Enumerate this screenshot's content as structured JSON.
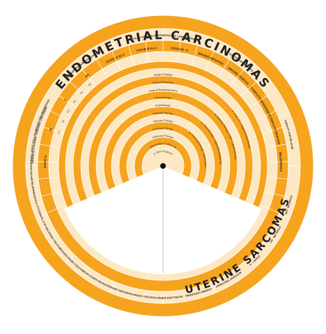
{
  "titles": {
    "top": "ENDOMETRIAL CARCINOMAS",
    "right": "UTERINE SARCOMAS"
  },
  "colors": {
    "orange": "#f6a31e",
    "cream": "#fde8c4",
    "line": "#ffffff",
    "dark": "#231f20"
  },
  "top_sections": [
    "SURGICALLY STAGED - ADJUVANT TREATMENT",
    "INCOMPLETE SURGICAL STAGING",
    "FERTILITY-SPARING (HYSTEROSCOPIC / ENDOMETRIAL)",
    "SURVEILLANCE - ENDO - R",
    "THERAPY FOR RELAPSE"
  ],
  "stage_headers": [
    "STAGE IA",
    "IB",
    "II",
    "IIIA",
    "STAGE IA G1-3",
    "STAGE IB G1-3",
    "STAGE IB - II",
    "IMAGING NEGATIVE",
    "IMAGING POSITIVE",
    "COMPLETE RESPONSE",
    "INCOMPLETE RESPONSE",
    "RECURRENCE"
  ],
  "treatment_arcs": [
    "Surgical Staging",
    "Surgical Resection",
    "Surgical Restaging Pelvic",
    "Chemotherapy",
    "Radiotherapy",
    "Systemic Therapy",
    "Adjuvant Therapy",
    "Hormonal Therapy",
    "Additional Therapy",
    "Observation / Follow Up",
    "Palliative / Best Supportive Care"
  ],
  "outer_sections": [
    "STAGE IVA - IVB",
    "STAGE IIIB - IIIC",
    "STAGE I - II",
    "ADJUVANT TREATMENT",
    "UTERINE CARCINOMA",
    "THERAPY FOR RELAPSE (RESECTION / SALVAGE)",
    "ESS / LEIOMYOSARCOMA",
    "UNDIFFERENTIATED SARCOMA",
    "INCOMPLETELY RESECTED",
    "COMPLETELY RESECTED",
    "FULLY SURGICALLY STAGED",
    "HORMONE RECEPTOR POSITIVE",
    "SURVEILLANCE / FOLLOW-UP",
    "THERAPY FOR PROGRESSION"
  ],
  "guide_notes": [
    "A. Pelvic RT ± Vaginal Brachytherapy",
    "B. Systemic therapy ± EBRT ± Brachytherapy",
    "C. Chemotherapy ± Vaginal Brachytherapy",
    "D. Hormonal therapy / Observation"
  ],
  "stage_short": [
    "G1",
    "G2",
    "G3",
    "G1",
    "G2",
    "G3"
  ]
}
